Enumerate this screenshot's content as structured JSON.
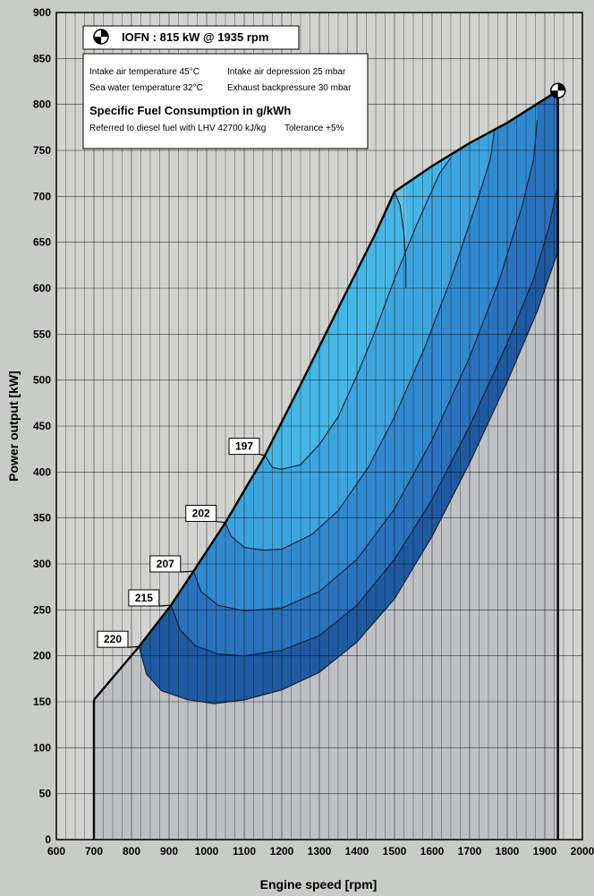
{
  "chart_data": {
    "type": "contour",
    "title": "IOFN : 815 kW @ 1935 rpm",
    "xlabel": "Engine speed [rpm]",
    "ylabel": "Power output [kW]",
    "xlim": [
      600,
      2000
    ],
    "ylim": [
      0,
      900
    ],
    "x_ticks": [
      600,
      700,
      800,
      900,
      1000,
      1100,
      1200,
      1300,
      1400,
      1500,
      1600,
      1700,
      1800,
      1900,
      2000
    ],
    "y_ticks": [
      0,
      50,
      100,
      150,
      200,
      250,
      300,
      350,
      400,
      450,
      500,
      550,
      600,
      650,
      700,
      750,
      800,
      850,
      900
    ],
    "grid": true,
    "info": {
      "intake_temp": "Intake air temperature   45°C",
      "intake_depression": "Intake air depression   25 mbar",
      "sea_temp": "Sea water temperature   32°C",
      "exhaust_backpressure": "Exhaust backpressure 30 mbar",
      "sfc_heading": "Specific Fuel Consumption in g/kWh",
      "reference": "Referred to diesel fuel with LHV 42700 kJ/kg",
      "tolerance": "Tolerance +5%"
    },
    "rated_point": {
      "x": 1935,
      "y": 815
    },
    "max_power_curve": [
      {
        "x": 700,
        "y": 152
      },
      {
        "x": 820,
        "y": 210
      },
      {
        "x": 905,
        "y": 255
      },
      {
        "x": 965,
        "y": 292
      },
      {
        "x": 1050,
        "y": 345
      },
      {
        "x": 1155,
        "y": 418
      },
      {
        "x": 1250,
        "y": 495
      },
      {
        "x": 1350,
        "y": 578
      },
      {
        "x": 1450,
        "y": 660
      },
      {
        "x": 1500,
        "y": 705
      },
      {
        "x": 1600,
        "y": 733
      },
      {
        "x": 1700,
        "y": 758
      },
      {
        "x": 1800,
        "y": 780
      },
      {
        "x": 1935,
        "y": 815
      }
    ],
    "speed_limit": {
      "x": 1935,
      "y_top": 815,
      "y_bottom": 0
    },
    "colormap": [
      "#1f5aa0",
      "#2a72bd",
      "#3189cf",
      "#3ea4de",
      "#45b6e6",
      "#6bc2e6"
    ],
    "contours": [
      {
        "label": "220",
        "points": [
          {
            "x": 820,
            "y": 210
          },
          {
            "x": 840,
            "y": 180
          },
          {
            "x": 880,
            "y": 162
          },
          {
            "x": 950,
            "y": 152
          },
          {
            "x": 1020,
            "y": 148
          },
          {
            "x": 1100,
            "y": 152
          },
          {
            "x": 1200,
            "y": 163
          },
          {
            "x": 1300,
            "y": 182
          },
          {
            "x": 1400,
            "y": 215
          },
          {
            "x": 1500,
            "y": 262
          },
          {
            "x": 1600,
            "y": 330
          },
          {
            "x": 1700,
            "y": 410
          },
          {
            "x": 1800,
            "y": 498
          },
          {
            "x": 1880,
            "y": 575
          },
          {
            "x": 1935,
            "y": 640
          }
        ]
      },
      {
        "label": "215",
        "points": [
          {
            "x": 905,
            "y": 255
          },
          {
            "x": 930,
            "y": 228
          },
          {
            "x": 970,
            "y": 211
          },
          {
            "x": 1030,
            "y": 202
          },
          {
            "x": 1100,
            "y": 200
          },
          {
            "x": 1200,
            "y": 206
          },
          {
            "x": 1300,
            "y": 222
          },
          {
            "x": 1400,
            "y": 255
          },
          {
            "x": 1500,
            "y": 305
          },
          {
            "x": 1600,
            "y": 370
          },
          {
            "x": 1700,
            "y": 450
          },
          {
            "x": 1800,
            "y": 540
          },
          {
            "x": 1870,
            "y": 610
          },
          {
            "x": 1910,
            "y": 665
          },
          {
            "x": 1935,
            "y": 712
          }
        ]
      },
      {
        "label": "207",
        "points": [
          {
            "x": 965,
            "y": 292
          },
          {
            "x": 985,
            "y": 270
          },
          {
            "x": 1030,
            "y": 255
          },
          {
            "x": 1100,
            "y": 249
          },
          {
            "x": 1200,
            "y": 252
          },
          {
            "x": 1300,
            "y": 270
          },
          {
            "x": 1400,
            "y": 305
          },
          {
            "x": 1500,
            "y": 360
          },
          {
            "x": 1600,
            "y": 435
          },
          {
            "x": 1700,
            "y": 525
          },
          {
            "x": 1780,
            "y": 610
          },
          {
            "x": 1840,
            "y": 690
          },
          {
            "x": 1870,
            "y": 740
          },
          {
            "x": 1880,
            "y": 783
          }
        ]
      },
      {
        "label": "202",
        "points": [
          {
            "x": 1050,
            "y": 345
          },
          {
            "x": 1065,
            "y": 330
          },
          {
            "x": 1100,
            "y": 318
          },
          {
            "x": 1150,
            "y": 315
          },
          {
            "x": 1200,
            "y": 316
          },
          {
            "x": 1280,
            "y": 332
          },
          {
            "x": 1350,
            "y": 358
          },
          {
            "x": 1430,
            "y": 405
          },
          {
            "x": 1500,
            "y": 460
          },
          {
            "x": 1580,
            "y": 535
          },
          {
            "x": 1650,
            "y": 610
          },
          {
            "x": 1720,
            "y": 695
          },
          {
            "x": 1755,
            "y": 740
          },
          {
            "x": 1765,
            "y": 770
          }
        ]
      },
      {
        "label": "197",
        "points": [
          {
            "x": 1155,
            "y": 418
          },
          {
            "x": 1175,
            "y": 405
          },
          {
            "x": 1200,
            "y": 403
          },
          {
            "x": 1250,
            "y": 408
          },
          {
            "x": 1300,
            "y": 430
          },
          {
            "x": 1350,
            "y": 460
          },
          {
            "x": 1400,
            "y": 505
          },
          {
            "x": 1450,
            "y": 555
          },
          {
            "x": 1500,
            "y": 610
          },
          {
            "x": 1560,
            "y": 670
          },
          {
            "x": 1620,
            "y": 725
          },
          {
            "x": 1650,
            "y": 742
          }
        ]
      },
      {
        "label": "",
        "points": [
          {
            "x": 1500,
            "y": 705
          },
          {
            "x": 1515,
            "y": 690
          },
          {
            "x": 1525,
            "y": 660
          },
          {
            "x": 1530,
            "y": 630
          },
          {
            "x": 1530,
            "y": 600
          }
        ]
      }
    ],
    "contour_labels": [
      {
        "text": "220",
        "x": 750,
        "y": 218,
        "to": {
          "x": 820,
          "y": 210
        }
      },
      {
        "text": "215",
        "x": 833,
        "y": 263,
        "to": {
          "x": 905,
          "y": 255
        }
      },
      {
        "text": "207",
        "x": 890,
        "y": 300,
        "to": {
          "x": 965,
          "y": 292
        }
      },
      {
        "text": "202",
        "x": 985,
        "y": 355,
        "to": {
          "x": 1050,
          "y": 345
        }
      },
      {
        "text": "197",
        "x": 1100,
        "y": 428,
        "to": {
          "x": 1155,
          "y": 418
        }
      }
    ]
  }
}
